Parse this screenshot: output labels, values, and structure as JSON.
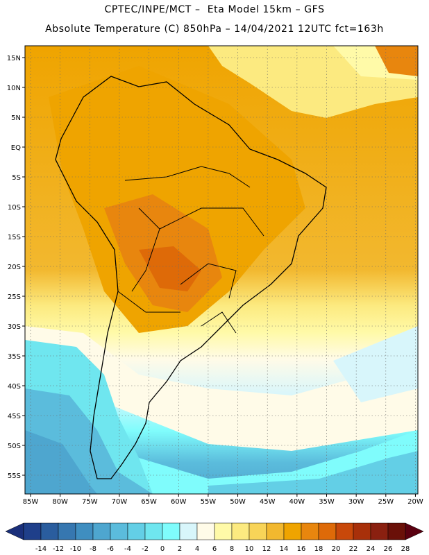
{
  "header": {
    "line1": "CPTEC/INPE/MCT –  Eta Model 15km – GFS",
    "line2": "Absolute Temperature (C) 850hPa – 14/04/2021 12UTC fct=163h"
  },
  "map": {
    "lat_labels": [
      "15N",
      "10N",
      "5N",
      "EQ",
      "5S",
      "10S",
      "15S",
      "20S",
      "25S",
      "30S",
      "35S",
      "40S",
      "45S",
      "50S",
      "55S"
    ],
    "lon_labels": [
      "85W",
      "80W",
      "75W",
      "70W",
      "65W",
      "60W",
      "55W",
      "50W",
      "45W",
      "40W",
      "35W",
      "30W",
      "25W",
      "20W"
    ]
  },
  "colorbar": {
    "labels": [
      "-14",
      "-12",
      "-10",
      "-8",
      "-6",
      "-4",
      "-2",
      "0",
      "2",
      "4",
      "6",
      "8",
      "10",
      "12",
      "14",
      "16",
      "18",
      "20",
      "22",
      "24",
      "26",
      "28"
    ],
    "colors": [
      "#1f3f8a",
      "#2a5d9e",
      "#3677b0",
      "#3f8ec0",
      "#4ea6cf",
      "#5bbcdc",
      "#63cfe6",
      "#6fe6ef",
      "#7ffcfc",
      "#d8f6fb",
      "#fffbe8",
      "#fffaa8",
      "#fcea80",
      "#f8d458",
      "#f2b82f",
      "#efa400",
      "#e8860e",
      "#de6a08",
      "#c8480a",
      "#a8300a",
      "#8a2010",
      "#6a1008"
    ]
  },
  "icons": {
    "left_arrow": "left-triangle-icon",
    "right_arrow": "right-triangle-icon"
  }
}
